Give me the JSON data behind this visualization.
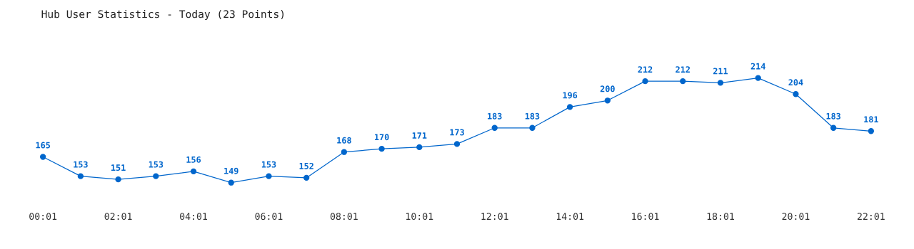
{
  "chart_data": {
    "type": "line",
    "title": "Hub User Statistics - Today (23 Points)",
    "categories": [
      "00:01",
      null,
      "02:01",
      null,
      "04:01",
      null,
      "06:01",
      null,
      "08:01",
      null,
      "10:01",
      null,
      "12:01",
      null,
      "14:01",
      null,
      "16:01",
      null,
      "18:01",
      null,
      "20:01",
      null,
      "22:01"
    ],
    "series": [
      {
        "color": "#0066cc",
        "values": [
          165,
          153,
          151,
          153,
          156,
          149,
          153,
          152,
          168,
          170,
          171,
          173,
          183,
          183,
          196,
          200,
          212,
          212,
          211,
          214,
          204,
          183,
          181
        ]
      }
    ],
    "data_labels": true,
    "marker": "circle",
    "line_style": "solid",
    "grid": false,
    "legend": false,
    "tick_labels": "x"
  }
}
